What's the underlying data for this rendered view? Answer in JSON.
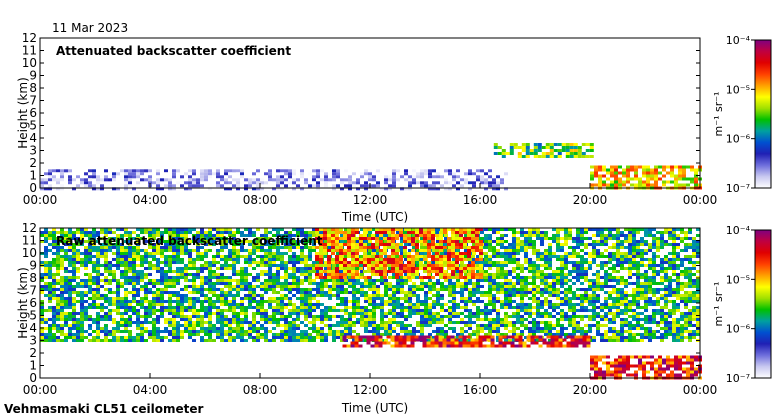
{
  "date_label": "11 Mar 2023",
  "footer": "Vehmasmaki CL51 ceilometer",
  "colorbar": {
    "unit": "m⁻¹ sr⁻¹",
    "tick_labels": [
      "10⁻⁷",
      "10⁻⁶",
      "10⁻⁵",
      "10⁻⁴"
    ],
    "stops": [
      "#ffffff",
      "#c8c8f0",
      "#6e6edc",
      "#2020b4",
      "#0050d0",
      "#00a0a0",
      "#00c000",
      "#a0e000",
      "#ffff00",
      "#ffa000",
      "#ff4000",
      "#e00000",
      "#c00040",
      "#800080"
    ]
  },
  "chart_data": [
    {
      "type": "heatmap",
      "title": "Attenuated backscatter coefficient",
      "xlabel": "Time (UTC)",
      "ylabel": "Height (km)",
      "x_tick_labels": [
        "00:00",
        "04:00",
        "08:00",
        "12:00",
        "16:00",
        "20:00",
        "00:00"
      ],
      "x_ticks_hours": [
        0,
        4,
        8,
        12,
        16,
        20,
        24
      ],
      "y_ticks": [
        0,
        1,
        2,
        3,
        4,
        5,
        6,
        7,
        8,
        9,
        10,
        11,
        12
      ],
      "ylim": [
        0,
        12
      ],
      "xlim_hours": [
        0,
        24
      ],
      "color_scale": "log",
      "clim": [
        1e-07,
        0.0001
      ],
      "features": [
        {
          "name": "near-surface weak signal",
          "start_h": 0,
          "end_h": 17,
          "top_km": 1.5,
          "level": 1.6e-07
        },
        {
          "name": "cloud layer",
          "start_h": 16.5,
          "end_h": 20,
          "base_km": 2.4,
          "top_km": 3.6,
          "level": 3e-06
        },
        {
          "name": "descending layer",
          "start_h": 20,
          "end_h": 24,
          "base_km": 0.1,
          "top_km": 1.8,
          "level": 8e-06
        }
      ]
    },
    {
      "type": "heatmap",
      "title": "Raw attenuated backscatter coefficient",
      "xlabel": "Time (UTC)",
      "ylabel": "Height (km)",
      "x_tick_labels": [
        "00:00",
        "04:00",
        "08:00",
        "12:00",
        "16:00",
        "20:00",
        "00:00"
      ],
      "x_ticks_hours": [
        0,
        4,
        8,
        12,
        16,
        20,
        24
      ],
      "y_ticks": [
        0,
        1,
        2,
        3,
        4,
        5,
        6,
        7,
        8,
        9,
        10,
        11,
        12
      ],
      "ylim": [
        0,
        12
      ],
      "xlim_hours": [
        0,
        24
      ],
      "color_scale": "log",
      "clim": [
        1e-07,
        0.0001
      ],
      "features": [
        {
          "name": "background noise",
          "start_h": 0,
          "end_h": 24,
          "base_km": 3,
          "top_km": 12,
          "level": 2e-06
        },
        {
          "name": "noise maximum",
          "start_h": 10,
          "end_h": 16,
          "base_km": 8,
          "top_km": 12,
          "level": 1.5e-05
        },
        {
          "name": "cloud layer",
          "start_h": 11,
          "end_h": 20,
          "base_km": 2.5,
          "top_km": 3.4,
          "level": 3e-05
        },
        {
          "name": "descending layer",
          "start_h": 20,
          "end_h": 24,
          "base_km": 0.1,
          "top_km": 1.8,
          "level": 3e-05
        }
      ]
    }
  ]
}
